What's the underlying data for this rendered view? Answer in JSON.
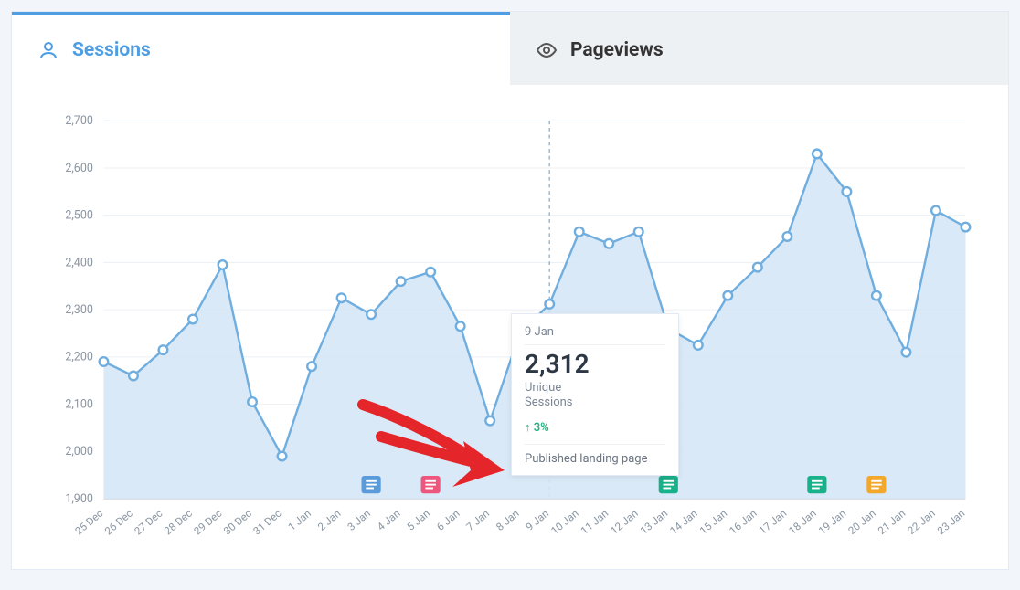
{
  "tabs": {
    "sessions": {
      "label": "Sessions",
      "active": true
    },
    "pageviews": {
      "label": "Pageviews",
      "active": false
    }
  },
  "tooltip": {
    "date": "9 Jan",
    "value": "2,312",
    "metric_line1": "Unique",
    "metric_line2": "Sessions",
    "delta_arrow": "↑",
    "delta": "3%",
    "note": "Published landing page"
  },
  "chart": {
    "type": "area-line",
    "ylim": [
      1900,
      2700
    ],
    "ytick_step": 100,
    "yticks": [
      1900,
      2000,
      2100,
      2200,
      2300,
      2400,
      2500,
      2600,
      2700
    ],
    "background_color": "#ffffff",
    "grid_color": "#eceff3",
    "baseline_color": "#b9c3ce",
    "line_color": "#6faedf",
    "area_color": "#d6e7f6",
    "marker_fill": "#ffffff",
    "marker_stroke": "#6faedf",
    "marker_radius": 5,
    "line_width": 2.5,
    "xref_index": 15,
    "xref_color": "#8fb9db",
    "categories": [
      "25 Dec",
      "26 Dec",
      "27 Dec",
      "28 Dec",
      "29 Dec",
      "30 Dec",
      "31 Dec",
      "1 Jan",
      "2 Jan",
      "3 Jan",
      "4 Jan",
      "5 Jan",
      "6 Jan",
      "7 Jan",
      "8 Jan",
      "9 Jan",
      "10 Jan",
      "11 Jan",
      "12 Jan",
      "13 Jan",
      "14 Jan",
      "15 Jan",
      "16 Jan",
      "17 Jan",
      "18 Jan",
      "19 Jan",
      "20 Jan",
      "21 Jan",
      "22 Jan",
      "23 Jan"
    ],
    "values": [
      2190,
      2160,
      2215,
      2280,
      2395,
      2105,
      1990,
      2180,
      2325,
      2290,
      2360,
      2380,
      2265,
      2065,
      2250,
      2312,
      2465,
      2440,
      2465,
      2260,
      2225,
      2330,
      2390,
      2455,
      2630,
      2550,
      2330,
      2210,
      2510,
      2475
    ],
    "notes": [
      {
        "index": 9,
        "color": "#5b9bd9"
      },
      {
        "index": 11,
        "color": "#ef567e"
      },
      {
        "index": 19,
        "color": "#19b18a"
      },
      {
        "index": 24,
        "color": "#19b18a"
      },
      {
        "index": 26,
        "color": "#f2a72d"
      }
    ],
    "arrow_annotation_color": "#e4262a"
  }
}
